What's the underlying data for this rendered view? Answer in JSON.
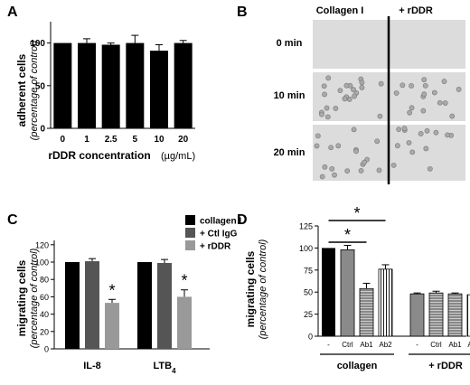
{
  "panels": {
    "A": {
      "letter": "A"
    },
    "B": {
      "letter": "B"
    },
    "C": {
      "letter": "C"
    },
    "D": {
      "letter": "D"
    }
  },
  "chart_data": [
    {
      "id": "A",
      "type": "bar",
      "ylabel": "adherent cells",
      "ylabel_sub": "(percentage of control)",
      "xlabel": "rDDR concentration",
      "xlabel_unit": "(µg/mL)",
      "categories": [
        "0",
        "1",
        "2.5",
        "5",
        "10",
        "20"
      ],
      "values": [
        100,
        100,
        98,
        100,
        91,
        100
      ],
      "errors": [
        0,
        5,
        2,
        9,
        7,
        3
      ],
      "ylim": [
        0,
        125
      ],
      "yticks": [
        "0",
        "50",
        "100"
      ],
      "bar_color": "#000000"
    },
    {
      "id": "C",
      "type": "bar",
      "ylabel": "migrating cells",
      "ylabel_sub": "(percentage of control)",
      "categories": [
        "IL-8",
        "LTB4"
      ],
      "tick_display": [
        {
          "base": "IL-8",
          "sub": ""
        },
        {
          "base": "LTB",
          "sub": "4"
        }
      ],
      "series": [
        {
          "name": "collagen I",
          "color": "#000000",
          "values": [
            100,
            100
          ],
          "errors": [
            0,
            0
          ]
        },
        {
          "name": "+ Ctl IgG",
          "color": "#555555",
          "values": [
            101,
            99
          ],
          "errors": [
            3,
            4
          ]
        },
        {
          "name": "+ rDDR",
          "color": "#999999",
          "values": [
            53,
            60
          ],
          "errors": [
            4,
            8
          ]
        }
      ],
      "significance": [
        {
          "category": 0,
          "series": 2,
          "mark": "*"
        },
        {
          "category": 1,
          "series": 2,
          "mark": "*"
        }
      ],
      "ylim": [
        0,
        125
      ],
      "yticks": [
        "0",
        "20",
        "40",
        "60",
        "80",
        "100",
        "120"
      ],
      "legend_position": "top-right"
    },
    {
      "id": "D",
      "type": "bar",
      "ylabel": "migrating cells",
      "ylabel_sub": "(percentage of control)",
      "categories": [
        "-",
        "Ctrl",
        "Ab1",
        "Ab2",
        "-",
        "Ctrl",
        "Ab1",
        "Ab2"
      ],
      "groups": [
        {
          "name": "collagen",
          "range": [
            0,
            3
          ]
        },
        {
          "name": "+ rDDR",
          "range": [
            4,
            7
          ]
        }
      ],
      "values": [
        100,
        98,
        54,
        76,
        48,
        49,
        48,
        47
      ],
      "errors": [
        0,
        5,
        6,
        5,
        1,
        2,
        1,
        2
      ],
      "patterns": [
        "black",
        "gray",
        "gray-hatch",
        "white-vstripe",
        "gray",
        "gray-hatch",
        "gray-hatch",
        "white-vstripe"
      ],
      "significance_brackets": [
        {
          "from": 0,
          "to": 2,
          "mark": "*"
        },
        {
          "from": 0,
          "to": 3,
          "mark": "*"
        }
      ],
      "ylim": [
        0,
        125
      ],
      "yticks": [
        "0",
        "25",
        "50",
        "75",
        "100",
        "125"
      ]
    }
  ],
  "microscopy": {
    "columns": [
      "Collagen I",
      "+ rDDR"
    ],
    "rows": [
      "0 min",
      "10 min",
      "20 min"
    ]
  }
}
